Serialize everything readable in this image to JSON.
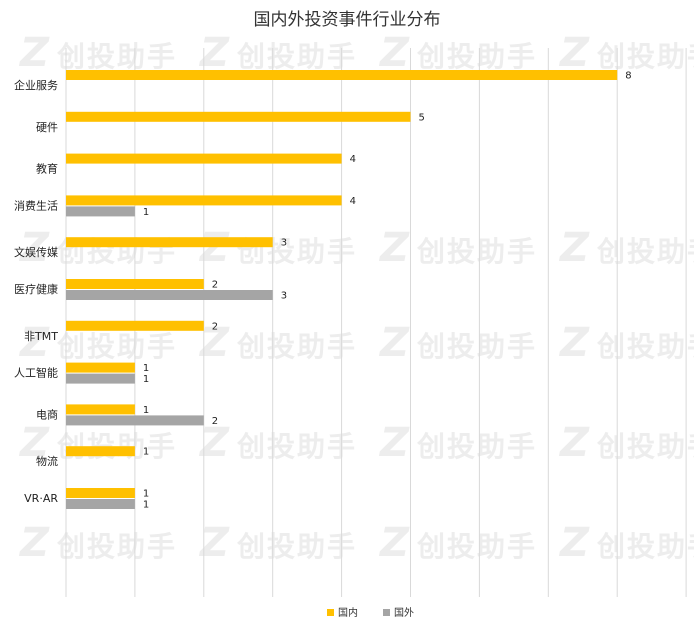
{
  "chart_data": {
    "type": "bar",
    "orientation": "horizontal",
    "title": "国内外投资事件行业分布",
    "categories": [
      "企业服务",
      "硬件",
      "教育",
      "消费生活",
      "文娱传媒",
      "医疗健康",
      "非TMT",
      "人工智能",
      "电商",
      "物流",
      "VR·AR"
    ],
    "series": [
      {
        "name": "国内",
        "color": "#FFC000",
        "values": [
          8,
          5,
          4,
          4,
          3,
          2,
          2,
          1,
          1,
          1,
          1
        ]
      },
      {
        "name": "国外",
        "color": "#A5A5A5",
        "values": [
          null,
          null,
          null,
          1,
          null,
          3,
          null,
          1,
          2,
          null,
          1
        ]
      }
    ],
    "xlim": [
      0,
      9
    ],
    "grid": true,
    "legend_position": "bottom"
  },
  "watermark": {
    "text": "创投助手",
    "glyph": "Z"
  }
}
